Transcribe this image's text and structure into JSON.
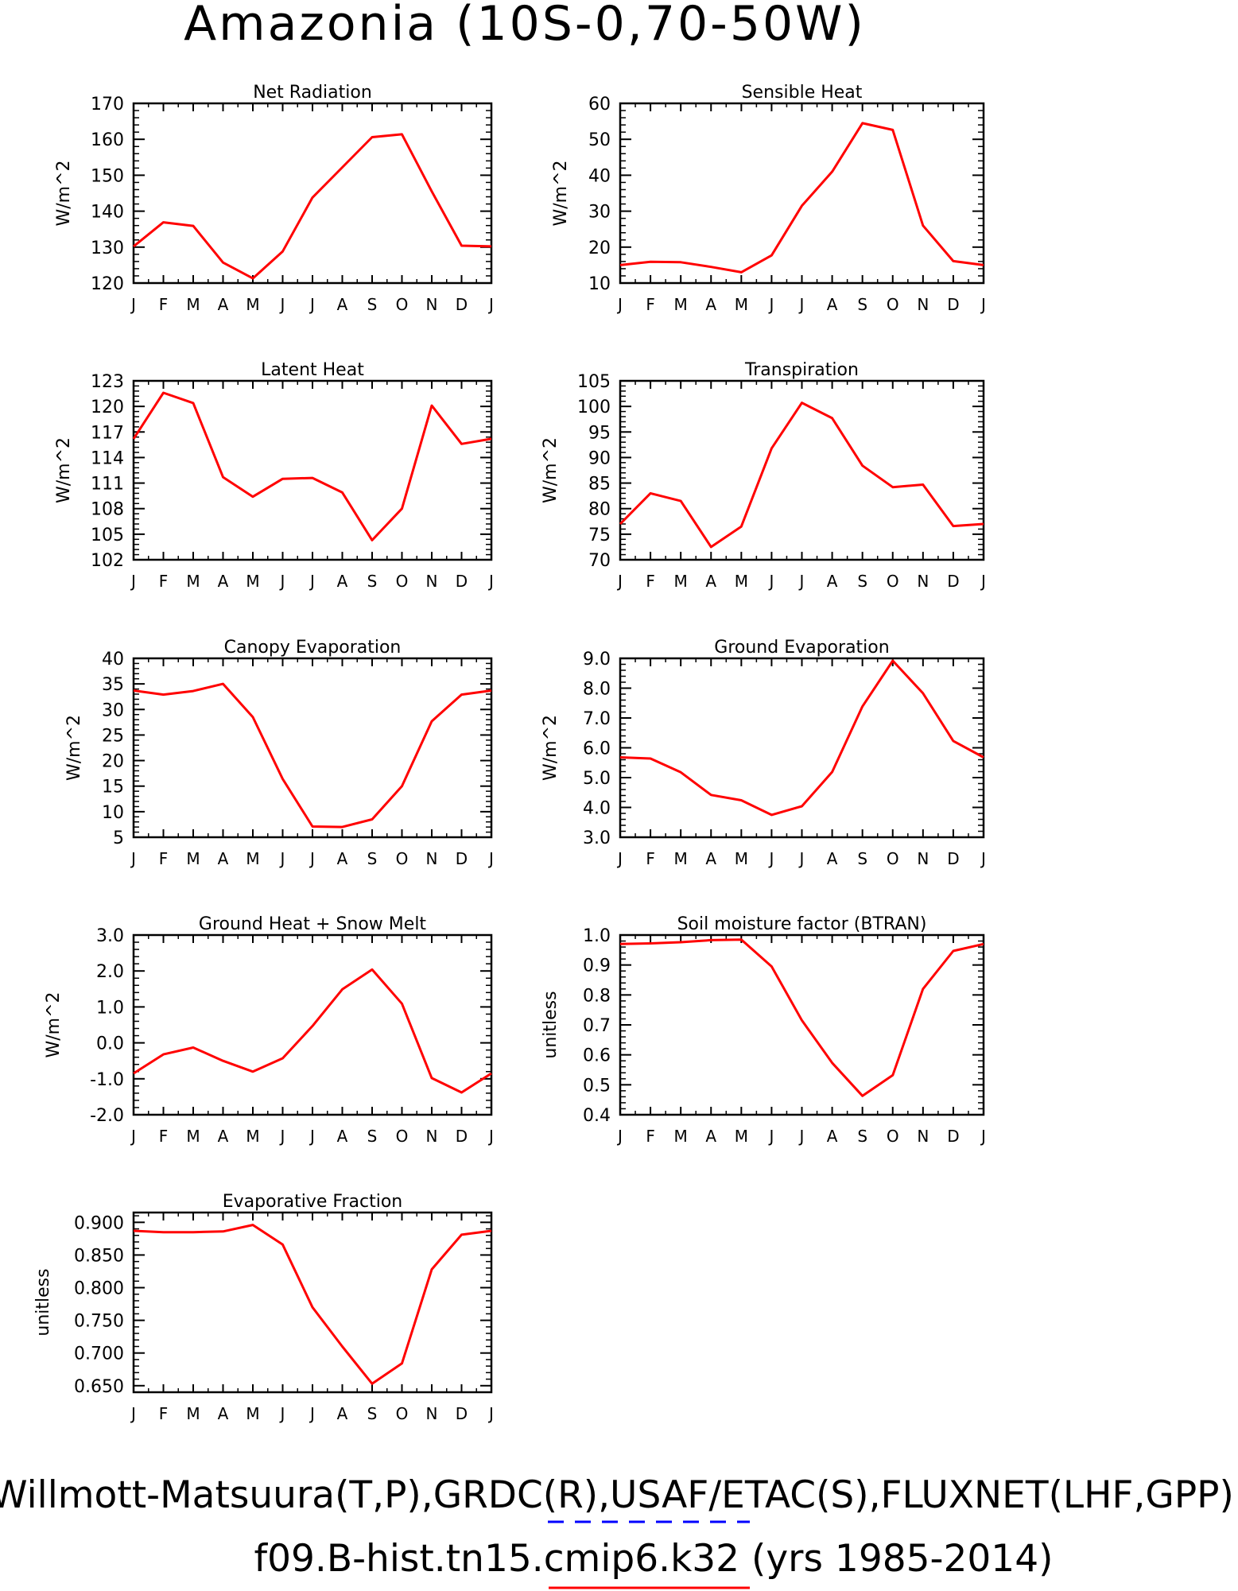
{
  "figure": {
    "title": "Amazonia (10S-0,70-50W)",
    "footer_line1": "Willmott-Matsuura(T,P),GRDC(R),USAF/ETAC(S),FLUXNET(LHF,GPP)",
    "footer_line2": "f09.B-hist.tn15.cmip6.k32 (yrs 1985-2014)",
    "colors": {
      "model_line": "#ff0000",
      "obs_line": "#0000ff",
      "axes": "#000000"
    }
  },
  "chart_data": [
    {
      "type": "line",
      "title": "Net Radiation",
      "ylabel": "W/m^2",
      "categories": [
        "J",
        "F",
        "M",
        "A",
        "M",
        "J",
        "J",
        "A",
        "S",
        "O",
        "N",
        "D",
        "J"
      ],
      "ylim": [
        120,
        170
      ],
      "yticks": [
        "120",
        "130",
        "140",
        "150",
        "160",
        "170"
      ],
      "series": [
        {
          "values": [
            130.2,
            136.9,
            135.9,
            125.7,
            121.3,
            128.8,
            143.8,
            152.2,
            160.6,
            161.4,
            145.5,
            130.4,
            130.2
          ]
        }
      ]
    },
    {
      "type": "line",
      "title": "Sensible Heat",
      "ylabel": "W/m^2",
      "categories": [
        "J",
        "F",
        "M",
        "A",
        "M",
        "J",
        "J",
        "A",
        "S",
        "O",
        "N",
        "D",
        "J"
      ],
      "ylim": [
        10,
        60
      ],
      "yticks": [
        "10",
        "20",
        "30",
        "40",
        "50",
        "60"
      ],
      "series": [
        {
          "values": [
            15.0,
            15.9,
            15.8,
            14.5,
            13.0,
            17.7,
            31.5,
            41.0,
            54.5,
            52.6,
            26.0,
            16.1,
            15.0
          ]
        }
      ]
    },
    {
      "type": "line",
      "title": "Latent Heat",
      "ylabel": "W/m^2",
      "categories": [
        "J",
        "F",
        "M",
        "A",
        "M",
        "J",
        "J",
        "A",
        "S",
        "O",
        "N",
        "D",
        "J"
      ],
      "ylim": [
        102,
        123
      ],
      "yticks": [
        "102",
        "105",
        "108",
        "111",
        "114",
        "117",
        "120",
        "123"
      ],
      "series": [
        {
          "values": [
            116.2,
            121.6,
            120.4,
            111.7,
            109.4,
            111.5,
            111.6,
            109.9,
            104.3,
            108.0,
            120.1,
            115.6,
            116.2
          ]
        }
      ]
    },
    {
      "type": "line",
      "title": "Transpiration",
      "ylabel": "W/m^2",
      "categories": [
        "J",
        "F",
        "M",
        "A",
        "M",
        "J",
        "J",
        "A",
        "S",
        "O",
        "N",
        "D",
        "J"
      ],
      "ylim": [
        70,
        105
      ],
      "yticks": [
        "70",
        "75",
        "80",
        "85",
        "90",
        "95",
        "100",
        "105"
      ],
      "series": [
        {
          "values": [
            77.0,
            83.0,
            81.5,
            72.5,
            76.5,
            91.8,
            100.7,
            97.7,
            88.4,
            84.2,
            84.7,
            76.6,
            77.0
          ]
        }
      ]
    },
    {
      "type": "line",
      "title": "Canopy Evaporation",
      "ylabel": "W/m^2",
      "categories": [
        "J",
        "F",
        "M",
        "A",
        "M",
        "J",
        "J",
        "A",
        "S",
        "O",
        "N",
        "D",
        "J"
      ],
      "ylim": [
        5,
        40
      ],
      "yticks": [
        "5",
        "10",
        "15",
        "20",
        "25",
        "30",
        "35",
        "40"
      ],
      "series": [
        {
          "values": [
            33.7,
            32.9,
            33.6,
            35.0,
            28.5,
            16.4,
            7.1,
            7.0,
            8.5,
            15.0,
            27.7,
            32.9,
            33.7
          ]
        }
      ]
    },
    {
      "type": "line",
      "title": "Ground Evaporation",
      "ylabel": "W/m^2",
      "categories": [
        "J",
        "F",
        "M",
        "A",
        "M",
        "J",
        "J",
        "A",
        "S",
        "O",
        "N",
        "D",
        "J"
      ],
      "ylim": [
        3.0,
        9.0
      ],
      "yticks": [
        "3.0",
        "4.0",
        "5.0",
        "6.0",
        "7.0",
        "8.0",
        "9.0"
      ],
      "series": [
        {
          "values": [
            5.68,
            5.64,
            5.18,
            4.42,
            4.24,
            3.75,
            4.04,
            5.19,
            7.39,
            8.92,
            7.83,
            6.23,
            5.68
          ]
        }
      ]
    },
    {
      "type": "line",
      "title": "Ground Heat + Snow Melt",
      "ylabel": "W/m^2",
      "categories": [
        "J",
        "F",
        "M",
        "A",
        "M",
        "J",
        "J",
        "A",
        "S",
        "O",
        "N",
        "D",
        "J"
      ],
      "ylim": [
        -2.0,
        3.0
      ],
      "yticks": [
        "-2.0",
        "-1.0",
        "0.0",
        "1.0",
        "2.0",
        "3.0"
      ],
      "series": [
        {
          "values": [
            -0.85,
            -0.32,
            -0.13,
            -0.5,
            -0.8,
            -0.43,
            0.47,
            1.49,
            2.04,
            1.09,
            -0.98,
            -1.38,
            -0.85
          ]
        }
      ]
    },
    {
      "type": "line",
      "title": "Soil moisture factor (BTRAN)",
      "ylabel": "unitless",
      "categories": [
        "J",
        "F",
        "M",
        "A",
        "M",
        "J",
        "J",
        "A",
        "S",
        "O",
        "N",
        "D",
        "J"
      ],
      "ylim": [
        0.4,
        1.0
      ],
      "yticks": [
        "0.4",
        "0.5",
        "0.6",
        "0.7",
        "0.8",
        "0.9",
        "1.0"
      ],
      "series": [
        {
          "values": [
            0.97,
            0.972,
            0.976,
            0.983,
            0.985,
            0.895,
            0.715,
            0.573,
            0.463,
            0.532,
            0.82,
            0.947,
            0.97
          ]
        }
      ]
    },
    {
      "type": "line",
      "title": "Evaporative Fraction",
      "ylabel": "unitless",
      "categories": [
        "J",
        "F",
        "M",
        "A",
        "M",
        "J",
        "J",
        "A",
        "S",
        "O",
        "N",
        "D",
        "J"
      ],
      "ylim": [
        0.64,
        0.915
      ],
      "yticks": [
        "0.650",
        "0.700",
        "0.750",
        "0.800",
        "0.850",
        "0.900"
      ],
      "series": [
        {
          "values": [
            0.887,
            0.885,
            0.885,
            0.886,
            0.896,
            0.866,
            0.77,
            0.71,
            0.653,
            0.684,
            0.828,
            0.881,
            0.887
          ]
        }
      ]
    }
  ]
}
